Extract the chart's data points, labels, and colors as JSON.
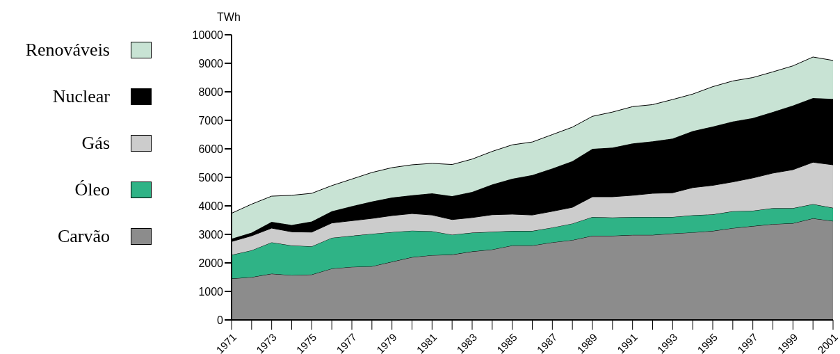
{
  "chart_data": {
    "type": "area",
    "stacked": true,
    "ylabel": "TWh",
    "legend": "left",
    "grid": false,
    "x": [
      1971,
      1972,
      1973,
      1974,
      1975,
      1976,
      1977,
      1978,
      1979,
      1980,
      1981,
      1982,
      1983,
      1984,
      1985,
      1986,
      1987,
      1988,
      1989,
      1990,
      1991,
      1992,
      1993,
      1994,
      1995,
      1996,
      1997,
      1998,
      1999,
      2000,
      2001
    ],
    "xlim": [
      1971,
      2001
    ],
    "xticks": [
      1971,
      {
        "value": 1972,
        "label": null
      },
      1973,
      {
        "value": 1974,
        "label": null
      },
      1975,
      {
        "value": 1976,
        "label": null
      },
      1977,
      {
        "value": 1978,
        "label": null
      },
      1979,
      {
        "value": 1980,
        "label": null
      },
      1981,
      {
        "value": 1982,
        "label": null
      },
      1983,
      {
        "value": 1984,
        "label": null
      },
      1985,
      {
        "value": 1986,
        "label": null
      },
      1987,
      {
        "value": 1988,
        "label": null
      },
      1989,
      {
        "value": 1990,
        "label": null
      },
      1991,
      {
        "value": 1992,
        "label": null
      },
      1993,
      {
        "value": 1994,
        "label": null
      },
      1995,
      {
        "value": 1996,
        "label": null
      },
      1997,
      {
        "value": 1998,
        "label": null
      },
      1999,
      {
        "value": 2000,
        "label": null
      },
      2001
    ],
    "ylim": [
      0,
      10000
    ],
    "yticks": [
      0,
      1000,
      2000,
      3000,
      4000,
      5000,
      6000,
      7000,
      8000,
      9000,
      10000
    ],
    "series": [
      {
        "name": "Carvão",
        "color": "#8c8c8c",
        "values": [
          1450,
          1500,
          1620,
          1570,
          1590,
          1800,
          1860,
          1880,
          2040,
          2200,
          2270,
          2290,
          2400,
          2470,
          2610,
          2610,
          2720,
          2800,
          2950,
          2950,
          2980,
          2980,
          3030,
          3070,
          3120,
          3220,
          3290,
          3360,
          3390,
          3560,
          3470
        ]
      },
      {
        "name": "Óleo",
        "color": "#2fb386",
        "values": [
          830,
          940,
          1100,
          1040,
          990,
          1080,
          1090,
          1140,
          1040,
          930,
          840,
          700,
          660,
          620,
          510,
          510,
          520,
          580,
          660,
          640,
          630,
          630,
          580,
          600,
          580,
          590,
          540,
          560,
          530,
          500,
          460
        ]
      },
      {
        "name": "Gás",
        "color": "#cccccc",
        "values": [
          470,
          510,
          500,
          480,
          500,
          520,
          530,
          540,
          580,
          600,
          570,
          530,
          530,
          600,
          590,
          560,
          570,
          570,
          710,
          730,
          760,
          830,
          850,
          970,
          1020,
          1030,
          1150,
          1230,
          1350,
          1470,
          1510
        ]
      },
      {
        "name": "Nuclear",
        "color": "#000000",
        "values": [
          100,
          110,
          220,
          240,
          370,
          410,
          510,
          590,
          630,
          640,
          760,
          820,
          900,
          1060,
          1240,
          1400,
          1500,
          1620,
          1680,
          1720,
          1820,
          1820,
          1900,
          1980,
          2060,
          2120,
          2100,
          2140,
          2250,
          2250,
          2310
        ]
      },
      {
        "name": "Renováveis",
        "color": "#c8e3d4",
        "values": [
          890,
          1000,
          900,
          1040,
          990,
          900,
          950,
          1020,
          1050,
          1070,
          1050,
          1110,
          1150,
          1160,
          1190,
          1160,
          1190,
          1190,
          1140,
          1250,
          1290,
          1290,
          1370,
          1300,
          1400,
          1420,
          1420,
          1410,
          1390,
          1440,
          1350
        ]
      }
    ]
  }
}
